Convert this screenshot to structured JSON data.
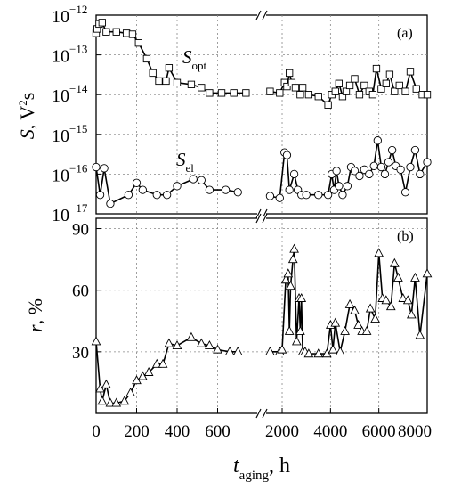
{
  "chart_data": [
    {
      "panel_label": "(a)",
      "type": "line",
      "y_label": "S,  V²s",
      "y_scale": "log",
      "y_limits": [
        1e-17,
        1e-12
      ],
      "y_ticks": [
        {
          "value": 1e-12,
          "base": "10",
          "exp": "−12"
        },
        {
          "value": 1e-13,
          "base": "10",
          "exp": "−13"
        },
        {
          "value": 1e-14,
          "base": "10",
          "exp": "−14"
        },
        {
          "value": 1e-15,
          "base": "10",
          "exp": "−15"
        },
        {
          "value": 1e-16,
          "base": "10",
          "exp": "−16"
        },
        {
          "value": 1e-17,
          "base": "10",
          "exp": "−17"
        }
      ],
      "series": [
        {
          "label_main": "S",
          "label_sub": "opt",
          "marker": "square",
          "points": [
            [
              0,
              3.5e-13
            ],
            [
              5,
              4.5e-13
            ],
            [
              15,
              6e-13
            ],
            [
              30,
              6.5e-13
            ],
            [
              50,
              3.8e-13
            ],
            [
              100,
              3.8e-13
            ],
            [
              150,
              3.5e-13
            ],
            [
              180,
              3.3e-13
            ],
            [
              210,
              2e-13
            ],
            [
              250,
              8e-14
            ],
            [
              280,
              3.5e-14
            ],
            [
              310,
              2.2e-14
            ],
            [
              345,
              2.2e-14
            ],
            [
              360,
              4.7e-14
            ],
            [
              400,
              2e-14
            ],
            [
              470,
              1.8e-14
            ],
            [
              520,
              1.5e-14
            ],
            [
              560,
              1.1e-14
            ],
            [
              620,
              1.1e-14
            ],
            [
              680,
              1.1e-14
            ],
            [
              740,
              1.1e-14
            ],
            [
              1500,
              1.2e-14
            ],
            [
              1900,
              1.1e-14
            ],
            [
              2100,
              2e-14
            ],
            [
              2200,
              1.6e-14
            ],
            [
              2300,
              3.5e-14
            ],
            [
              2400,
              2e-14
            ],
            [
              2550,
              1.5e-14
            ],
            [
              2750,
              1e-14
            ],
            [
              2850,
              1.5e-14
            ],
            [
              3100,
              1e-14
            ],
            [
              3500,
              9e-15
            ],
            [
              3900,
              5.5e-15
            ],
            [
              4050,
              1e-14
            ],
            [
              4200,
              1.2e-14
            ],
            [
              4350,
              1.9e-14
            ],
            [
              4500,
              9e-15
            ],
            [
              4650,
              1.2e-14
            ],
            [
              4800,
              1.7e-14
            ],
            [
              5000,
              2.5e-14
            ],
            [
              5200,
              1e-14
            ],
            [
              5400,
              1.7e-14
            ],
            [
              5600,
              1.2e-14
            ],
            [
              5750,
              1e-14
            ],
            [
              5900,
              4.5e-14
            ],
            [
              6100,
              1.4e-14
            ],
            [
              6300,
              1.9e-14
            ],
            [
              6450,
              3.2e-14
            ],
            [
              6650,
              1.2e-14
            ],
            [
              6850,
              1.7e-14
            ],
            [
              7100,
              1.2e-14
            ],
            [
              7300,
              3.8e-14
            ],
            [
              7550,
              1.4e-14
            ],
            [
              7800,
              1e-14
            ],
            [
              8000,
              1e-14
            ]
          ]
        },
        {
          "label_main": "S",
          "label_sub": "el",
          "marker": "circle",
          "points": [
            [
              0,
              1.5e-16
            ],
            [
              20,
              3e-17
            ],
            [
              40,
              1.4e-16
            ],
            [
              70,
              1.8e-17
            ],
            [
              160,
              3e-17
            ],
            [
              200,
              6e-17
            ],
            [
              230,
              4e-17
            ],
            [
              300,
              3e-17
            ],
            [
              350,
              3e-17
            ],
            [
              400,
              5e-17
            ],
            [
              480,
              7.5e-17
            ],
            [
              520,
              7e-17
            ],
            [
              560,
              4e-17
            ],
            [
              640,
              4e-17
            ],
            [
              700,
              3.5e-17
            ],
            [
              1500,
              2.8e-17
            ],
            [
              1900,
              2.5e-17
            ],
            [
              2100,
              3.5e-16
            ],
            [
              2200,
              3e-16
            ],
            [
              2300,
              4e-17
            ],
            [
              2500,
              1e-16
            ],
            [
              2650,
              4e-17
            ],
            [
              2800,
              3e-17
            ],
            [
              3000,
              3e-17
            ],
            [
              3500,
              3e-17
            ],
            [
              3900,
              3e-17
            ],
            [
              4050,
              1e-16
            ],
            [
              4150,
              4e-17
            ],
            [
              4250,
              1.2e-16
            ],
            [
              4350,
              5e-17
            ],
            [
              4500,
              3e-17
            ],
            [
              4700,
              5e-17
            ],
            [
              4850,
              1.5e-16
            ],
            [
              5000,
              1.2e-16
            ],
            [
              5200,
              9e-17
            ],
            [
              5400,
              1.3e-16
            ],
            [
              5600,
              1e-16
            ],
            [
              5800,
              1.6e-16
            ],
            [
              5950,
              7e-16
            ],
            [
              6100,
              1.5e-16
            ],
            [
              6250,
              1e-16
            ],
            [
              6400,
              2e-16
            ],
            [
              6550,
              4e-16
            ],
            [
              6700,
              1.6e-16
            ],
            [
              6900,
              1.3e-16
            ],
            [
              7100,
              3.5e-17
            ],
            [
              7300,
              1.5e-16
            ],
            [
              7500,
              4e-16
            ],
            [
              7700,
              1e-16
            ],
            [
              8000,
              2e-16
            ]
          ]
        }
      ]
    },
    {
      "panel_label": "(b)",
      "type": "line",
      "y_label_main": "r",
      "y_label_unit": ", %",
      "y_limits": [
        0,
        95
      ],
      "y_ticks": [
        "30",
        "60",
        "90"
      ],
      "x_label_main": "t",
      "x_label_sub": "aging",
      "x_label_unit": ",  h",
      "x_ticks_left": [
        "0",
        "200",
        "400",
        "600"
      ],
      "x_ticks_right": [
        "2000",
        "4000",
        "6000",
        "8000"
      ],
      "x_break": {
        "left_range": [
          0,
          800
        ],
        "right_range": [
          1300,
          8000
        ]
      },
      "series": [
        {
          "marker": "triangle",
          "points": [
            [
              0,
              35
            ],
            [
              20,
              12
            ],
            [
              30,
              6
            ],
            [
              50,
              14
            ],
            [
              70,
              5
            ],
            [
              100,
              5
            ],
            [
              140,
              6
            ],
            [
              170,
              10
            ],
            [
              200,
              16
            ],
            [
              230,
              18
            ],
            [
              260,
              20
            ],
            [
              300,
              24
            ],
            [
              330,
              24
            ],
            [
              360,
              34
            ],
            [
              400,
              33
            ],
            [
              470,
              37
            ],
            [
              520,
              34
            ],
            [
              560,
              33
            ],
            [
              600,
              31
            ],
            [
              660,
              30
            ],
            [
              700,
              30
            ],
            [
              1500,
              30
            ],
            [
              1900,
              30
            ],
            [
              2000,
              31
            ],
            [
              2150,
              65
            ],
            [
              2250,
              68
            ],
            [
              2300,
              40
            ],
            [
              2350,
              62
            ],
            [
              2450,
              75
            ],
            [
              2500,
              80
            ],
            [
              2600,
              35
            ],
            [
              2700,
              56
            ],
            [
              2750,
              40
            ],
            [
              2800,
              56
            ],
            [
              2850,
              30
            ],
            [
              2950,
              30
            ],
            [
              3100,
              29
            ],
            [
              3500,
              29
            ],
            [
              3850,
              29
            ],
            [
              4000,
              43
            ],
            [
              4100,
              31
            ],
            [
              4200,
              44
            ],
            [
              4400,
              30
            ],
            [
              4600,
              40
            ],
            [
              4800,
              53
            ],
            [
              5000,
              50
            ],
            [
              5150,
              43
            ],
            [
              5300,
              40
            ],
            [
              5500,
              40
            ],
            [
              5650,
              51
            ],
            [
              5850,
              46
            ],
            [
              6000,
              78
            ],
            [
              6150,
              56
            ],
            [
              6300,
              55
            ],
            [
              6500,
              52
            ],
            [
              6650,
              73
            ],
            [
              6800,
              66
            ],
            [
              7000,
              56
            ],
            [
              7200,
              55
            ],
            [
              7350,
              48
            ],
            [
              7500,
              66
            ],
            [
              7700,
              38
            ],
            [
              8000,
              68
            ]
          ]
        }
      ]
    }
  ]
}
